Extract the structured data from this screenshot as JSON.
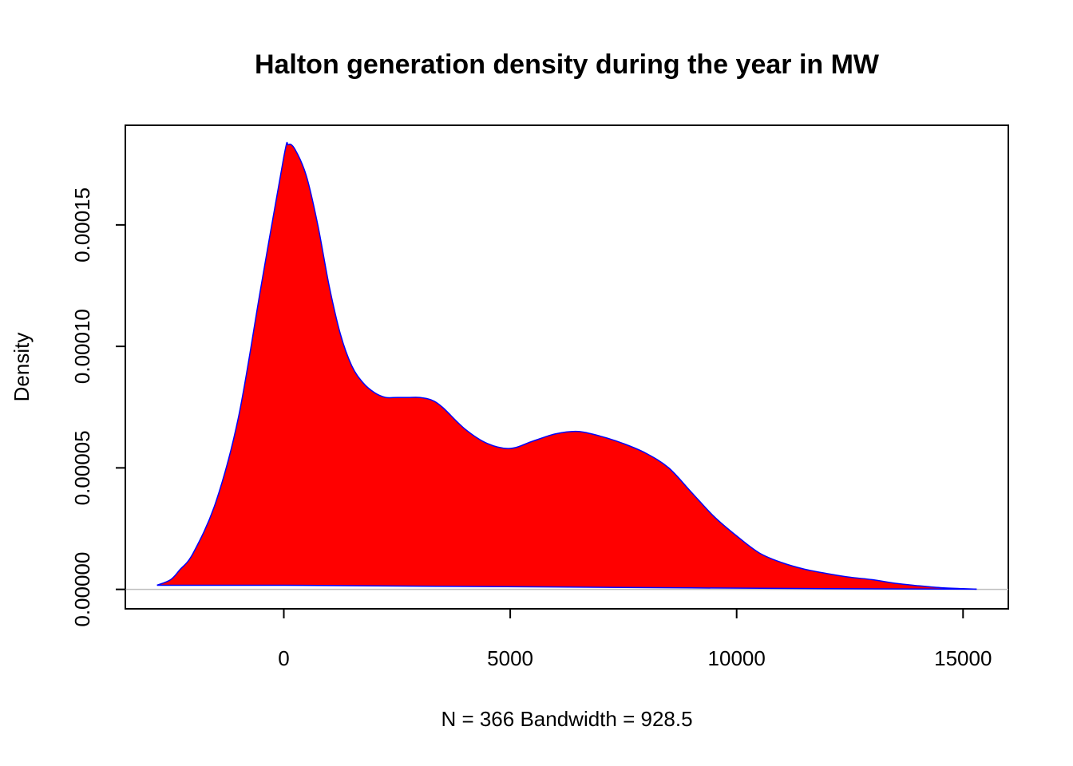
{
  "chart_data": {
    "type": "area",
    "title": "Halton generation density during the year in MW",
    "xlabel": "N = 366   Bandwidth = 928.5",
    "ylabel": "Density",
    "xlim": [
      -3500,
      16000
    ],
    "ylim": [
      -8e-06,
      0.000191
    ],
    "x_ticks": [
      0,
      5000,
      10000,
      15000
    ],
    "x_tick_labels": [
      "0",
      "5000",
      "10000",
      "15000"
    ],
    "y_ticks": [
      0,
      5e-05,
      0.0001,
      0.00015
    ],
    "y_tick_labels": [
      "0.00000",
      "0.00005",
      "0.00010",
      "0.00015"
    ],
    "grid": false,
    "fill_color": "#ff0000",
    "line_color": "#0000ff",
    "series": [
      {
        "x": [
          -2800,
          -2500,
          -2300,
          -2000,
          -1500,
          -1000,
          -500,
          0,
          100,
          250,
          500,
          750,
          1000,
          1250,
          1500,
          1750,
          2000,
          2250,
          2500,
          2750,
          3000,
          3250,
          3500,
          4000,
          4500,
          5000,
          5500,
          6000,
          6500,
          7000,
          7500,
          8000,
          8500,
          9000,
          9500,
          10000,
          10500,
          11000,
          11500,
          12000,
          12500,
          13000,
          13500,
          14000,
          14500,
          15000,
          15300
        ],
        "y": [
          1.7e-06,
          4e-06,
          8e-06,
          1.5e-05,
          3.6e-05,
          7.1e-05,
          0.000125,
          0.000178,
          0.000183,
          0.000181,
          0.00017,
          0.00015,
          0.000125,
          0.000105,
          9.2e-05,
          8.5e-05,
          8.1e-05,
          7.9e-05,
          7.9e-05,
          7.9e-05,
          7.9e-05,
          7.8e-05,
          7.5e-05,
          6.6e-05,
          6e-05,
          5.8e-05,
          6.1e-05,
          6.4e-05,
          6.5e-05,
          6.3e-05,
          6e-05,
          5.6e-05,
          5e-05,
          4e-05,
          3e-05,
          2.2e-05,
          1.5e-05,
          1.1e-05,
          8.3e-06,
          6.5e-06,
          5e-06,
          4e-06,
          2.5e-06,
          1.5e-06,
          7e-07,
          3e-07,
          1e-07
        ]
      }
    ],
    "rug_baseline": {
      "x": [
        -2800,
        0,
        3000,
        6000,
        9000,
        12000,
        15300
      ],
      "y": [
        1.7e-06,
        1.7e-06,
        1.3e-06,
        1e-06,
        6e-07,
        3e-07,
        1e-07
      ]
    }
  }
}
